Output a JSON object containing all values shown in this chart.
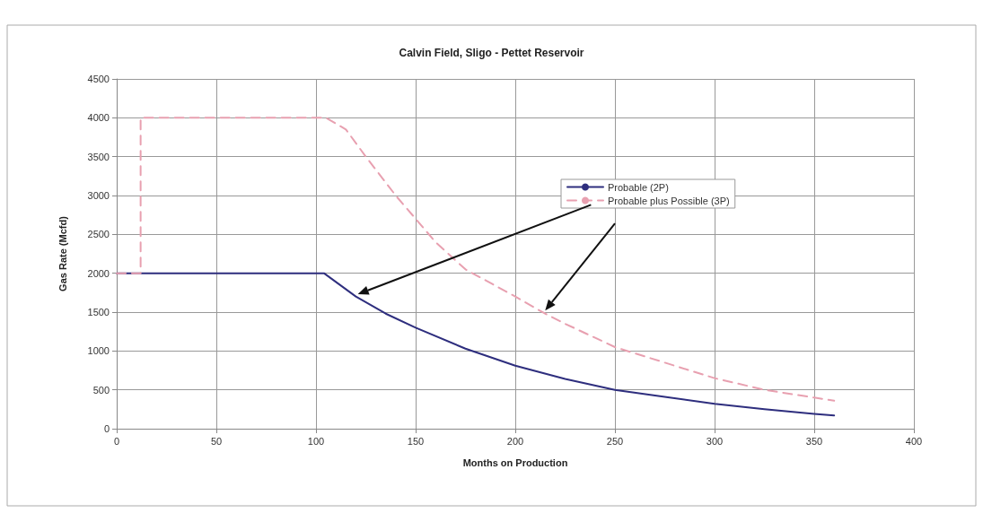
{
  "chart_data": {
    "type": "line",
    "title": "Calvin Field, Sligo - Pettet Reservoir",
    "xlabel": "Months on Production",
    "ylabel": "Gas Rate (Mcfd)",
    "xlim": [
      0,
      400
    ],
    "xticks": [
      0,
      50,
      100,
      150,
      200,
      250,
      300,
      350,
      400
    ],
    "ylim": [
      0,
      4500
    ],
    "yticks": [
      0,
      500,
      1000,
      1500,
      2000,
      2500,
      3000,
      3500,
      4000,
      4500
    ],
    "grid": true,
    "legend": "right",
    "marker": "none",
    "series": [
      {
        "name": "Probable (2P)",
        "color": "#2e2e7e",
        "line_style": "solid",
        "x": [
          0,
          104,
          112,
          120,
          135,
          150,
          175,
          200,
          225,
          250,
          275,
          300,
          325,
          350,
          360
        ],
        "values": [
          2000,
          2000,
          1850,
          1700,
          1480,
          1300,
          1030,
          810,
          640,
          500,
          410,
          320,
          250,
          190,
          170
        ]
      },
      {
        "name": "Probable plus Possible (3P)",
        "color": "#e8a0b0",
        "line_style": "dashed",
        "x": [
          0,
          12,
          12,
          105,
          115,
          125,
          140,
          150,
          160,
          175,
          200,
          215,
          225,
          250,
          275,
          300,
          325,
          350,
          360
        ],
        "values": [
          2000,
          2000,
          4000,
          4000,
          3850,
          3500,
          3000,
          2700,
          2400,
          2050,
          1700,
          1480,
          1350,
          1050,
          850,
          650,
          500,
          400,
          360
        ]
      }
    ]
  }
}
